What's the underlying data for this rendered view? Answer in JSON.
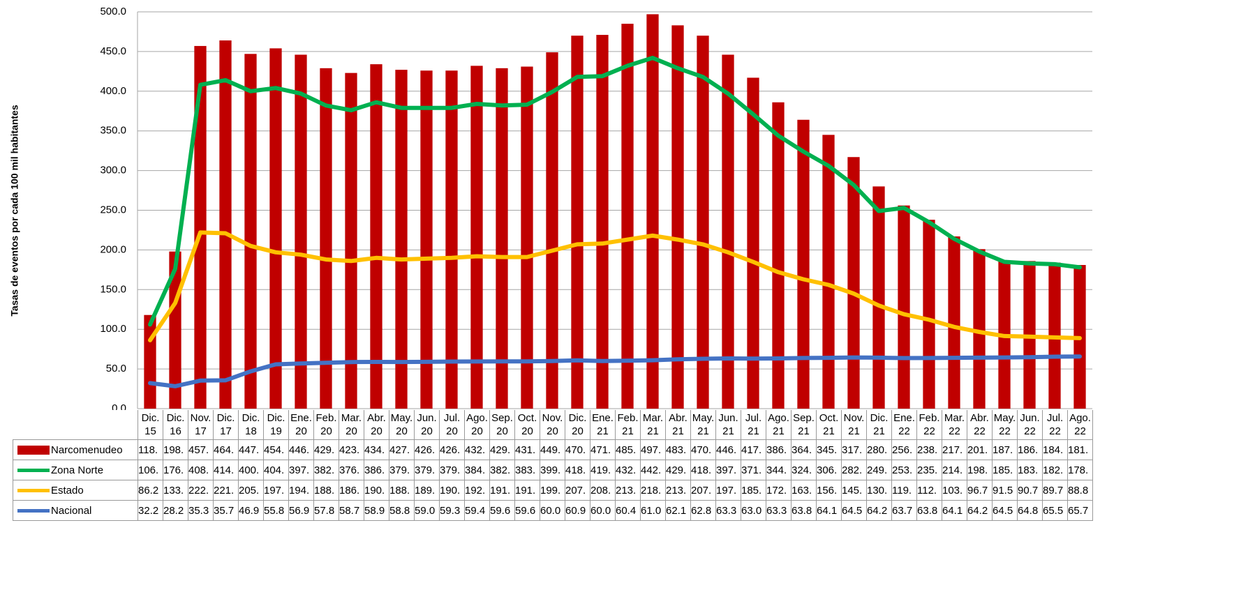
{
  "chart_data": {
    "type": "bar",
    "y_label": "Tasas de eventos por cada 100 mil habitantes",
    "categories": [
      "Dic. 15",
      "Dic. 16",
      "Nov. 17",
      "Dic. 17",
      "Dic. 18",
      "Dic. 19",
      "Ene. 20",
      "Feb. 20",
      "Mar. 20",
      "Abr. 20",
      "May. 20",
      "Jun. 20",
      "Jul. 20",
      "Ago. 20",
      "Sep. 20",
      "Oct. 20",
      "Nov. 20",
      "Dic. 20",
      "Ene. 21",
      "Feb. 21",
      "Mar. 21",
      "Abr. 21",
      "May. 21",
      "Jun. 21",
      "Jul. 21",
      "Ago. 21",
      "Sep. 21",
      "Oct. 21",
      "Nov. 21",
      "Dic. 21",
      "Ene. 22",
      "Feb. 22",
      "Mar. 22",
      "Abr. 22",
      "May. 22",
      "Jun. 22",
      "Jul. 22",
      "Ago. 22"
    ],
    "ylim": [
      0,
      500
    ],
    "yticks": [
      {
        "value": 0,
        "label": "0.0"
      },
      {
        "value": 50,
        "label": "50.0"
      },
      {
        "value": 100,
        "label": "100.0"
      },
      {
        "value": 150,
        "label": "150.0"
      },
      {
        "value": 200,
        "label": "200.0"
      },
      {
        "value": 250,
        "label": "250.0"
      },
      {
        "value": 300,
        "label": "300.0"
      },
      {
        "value": 350,
        "label": "350.0"
      },
      {
        "value": 400,
        "label": "400.0"
      },
      {
        "value": 450,
        "label": "450.0"
      },
      {
        "value": 500,
        "label": "500.0"
      }
    ],
    "grid": true,
    "series": [
      {
        "name": "Narcomenudeo",
        "type": "bar",
        "color": "#c00000",
        "values": [
          118,
          198,
          457,
          464,
          447,
          454,
          446,
          429,
          423,
          434,
          427,
          426,
          426,
          432,
          429,
          431,
          449,
          470,
          471,
          485,
          497,
          483,
          470,
          446,
          417,
          386,
          364,
          345,
          317,
          280,
          256,
          238,
          217,
          201,
          187,
          186,
          184,
          181
        ],
        "value_labels": [
          "118.",
          "198.",
          "457.",
          "464.",
          "447.",
          "454.",
          "446.",
          "429.",
          "423.",
          "434.",
          "427.",
          "426.",
          "426.",
          "432.",
          "429.",
          "431.",
          "449.",
          "470.",
          "471.",
          "485.",
          "497.",
          "483.",
          "470.",
          "446.",
          "417.",
          "386.",
          "364.",
          "345.",
          "317.",
          "280.",
          "256.",
          "238.",
          "217.",
          "201.",
          "187.",
          "186.",
          "184.",
          "181."
        ]
      },
      {
        "name": "Zona Norte",
        "type": "line",
        "color": "#00b050",
        "values": [
          106,
          176,
          408,
          414,
          400,
          404,
          397,
          382,
          376,
          386,
          379,
          379,
          379,
          384,
          382,
          383,
          399,
          418,
          419,
          432,
          442,
          429,
          418,
          397,
          371,
          344,
          324,
          306,
          282,
          249,
          253,
          235,
          214,
          198,
          185,
          183,
          182,
          178
        ],
        "value_labels": [
          "106.",
          "176.",
          "408.",
          "414.",
          "400.",
          "404.",
          "397.",
          "382.",
          "376.",
          "386.",
          "379.",
          "379.",
          "379.",
          "384.",
          "382.",
          "383.",
          "399.",
          "418.",
          "419.",
          "432.",
          "442.",
          "429.",
          "418.",
          "397.",
          "371.",
          "344.",
          "324.",
          "306.",
          "282.",
          "249.",
          "253.",
          "235.",
          "214.",
          "198.",
          "185.",
          "183.",
          "182.",
          "178."
        ]
      },
      {
        "name": "Estado",
        "type": "line",
        "color": "#ffc000",
        "values": [
          86.2,
          133,
          222,
          221,
          205,
          197,
          194,
          188,
          186,
          190,
          188,
          189,
          190,
          192,
          191,
          191,
          199,
          207,
          208,
          213,
          218,
          213,
          207,
          197,
          185,
          172,
          163,
          156,
          145,
          130,
          119,
          112,
          103,
          96.7,
          91.5,
          90.7,
          89.7,
          88.8
        ],
        "value_labels": [
          "86.2",
          "133.",
          "222.",
          "221.",
          "205.",
          "197.",
          "194.",
          "188.",
          "186.",
          "190.",
          "188.",
          "189.",
          "190.",
          "192.",
          "191.",
          "191.",
          "199.",
          "207.",
          "208.",
          "213.",
          "218.",
          "213.",
          "207.",
          "197.",
          "185.",
          "172.",
          "163.",
          "156.",
          "145.",
          "130.",
          "119.",
          "112.",
          "103.",
          "96.7",
          "91.5",
          "90.7",
          "89.7",
          "88.8"
        ]
      },
      {
        "name": "Nacional",
        "type": "line",
        "color": "#4472c4",
        "values": [
          32.2,
          28.2,
          35.3,
          35.7,
          46.9,
          55.8,
          56.9,
          57.8,
          58.7,
          58.9,
          58.8,
          59.0,
          59.3,
          59.4,
          59.6,
          59.6,
          60.0,
          60.9,
          60.0,
          60.4,
          61.0,
          62.1,
          62.8,
          63.3,
          63.0,
          63.3,
          63.8,
          64.1,
          64.5,
          64.2,
          63.7,
          63.8,
          64.1,
          64.2,
          64.5,
          64.8,
          65.5,
          65.7
        ],
        "value_labels": [
          "32.2",
          "28.2",
          "35.3",
          "35.7",
          "46.9",
          "55.8",
          "56.9",
          "57.8",
          "58.7",
          "58.9",
          "58.8",
          "59.0",
          "59.3",
          "59.4",
          "59.6",
          "59.6",
          "60.0",
          "60.9",
          "60.0",
          "60.4",
          "61.0",
          "62.1",
          "62.8",
          "63.3",
          "63.0",
          "63.3",
          "63.8",
          "64.1",
          "64.5",
          "64.2",
          "63.7",
          "63.8",
          "64.1",
          "64.2",
          "64.5",
          "64.8",
          "65.5",
          "65.7"
        ]
      }
    ]
  }
}
